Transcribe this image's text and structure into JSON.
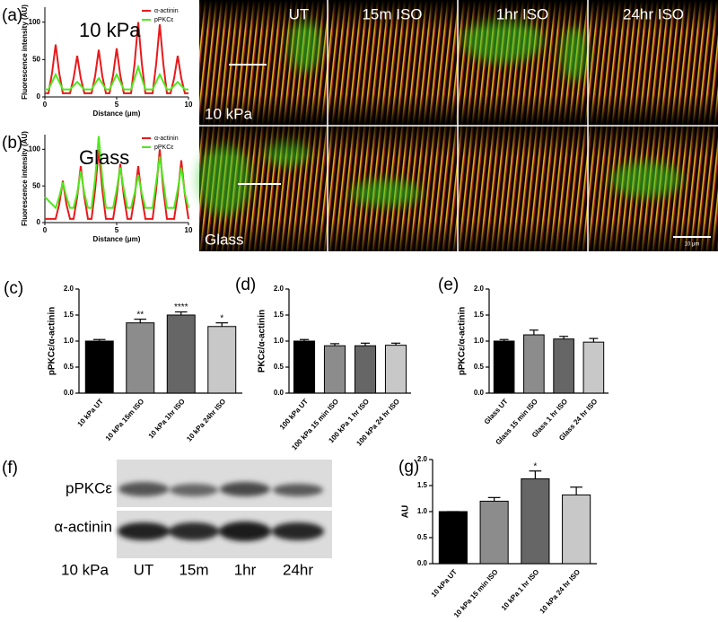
{
  "chart_data": [
    {
      "type": "line",
      "label": "(a)",
      "annotation": "10 kPa",
      "xlabel": "Distance (μm)",
      "ylabel": "Fluorescence intensity (AU)",
      "x": [
        0,
        0.25,
        0.5,
        0.75,
        1,
        1.25,
        1.5,
        1.75,
        2,
        2.25,
        2.5,
        2.75,
        3,
        3.25,
        3.5,
        3.75,
        4,
        4.25,
        4.5,
        4.75,
        5,
        5.25,
        5.5,
        5.75,
        6,
        6.25,
        6.5,
        6.75,
        7,
        7.25,
        7.5,
        7.75,
        8,
        8.25,
        8.5,
        8.75,
        9,
        9.25,
        9.5,
        9.75,
        10
      ],
      "series": [
        {
          "name": "α-actinin",
          "color": "#e8191c",
          "values": [
            5,
            5,
            32,
            70,
            32,
            5,
            5,
            5,
            25,
            55,
            25,
            5,
            5,
            5,
            28,
            63,
            28,
            5,
            5,
            29,
            65,
            29,
            5,
            5,
            5,
            45,
            100,
            45,
            5,
            5,
            5,
            44,
            97,
            44,
            5,
            5,
            25,
            55,
            25,
            5,
            5
          ]
        },
        {
          "name": "pPKCε",
          "color": "#4fe81c",
          "values": [
            10,
            10,
            20,
            30,
            20,
            10,
            10,
            10,
            15,
            20,
            15,
            10,
            10,
            10,
            18,
            25,
            18,
            10,
            10,
            20,
            30,
            20,
            10,
            10,
            10,
            25,
            40,
            25,
            10,
            10,
            10,
            20,
            30,
            20,
            10,
            10,
            15,
            20,
            15,
            10,
            10
          ]
        }
      ],
      "xlim": [
        0,
        10
      ],
      "xticks": [
        0,
        5,
        10
      ],
      "ylim": [
        0,
        120
      ],
      "yticks": [
        0,
        50,
        100
      ]
    },
    {
      "type": "line",
      "label": "(b)",
      "annotation": "Glass",
      "xlabel": "Distance (μm)",
      "ylabel": "Fluorescence intensity (AU)",
      "x": [
        0,
        0.25,
        0.5,
        0.75,
        1,
        1.25,
        1.5,
        1.75,
        2,
        2.25,
        2.5,
        2.75,
        3,
        3.25,
        3.5,
        3.75,
        4,
        4.25,
        4.5,
        4.75,
        5,
        5.25,
        5.5,
        5.75,
        6,
        6.25,
        6.5,
        6.75,
        7,
        7.25,
        7.5,
        7.75,
        8,
        8.25,
        8.5,
        8.75,
        9,
        9.25,
        9.5,
        9.75,
        10
      ],
      "series": [
        {
          "name": "α-actinin",
          "color": "#e8191c",
          "values": [
            5,
            5,
            5,
            5,
            25,
            57,
            25,
            5,
            5,
            35,
            77,
            35,
            5,
            5,
            45,
            100,
            45,
            5,
            5,
            5,
            36,
            80,
            36,
            5,
            5,
            35,
            77,
            35,
            5,
            5,
            5,
            45,
            100,
            45,
            5,
            5,
            5,
            38,
            85,
            38,
            5
          ]
        },
        {
          "name": "pPKCε",
          "color": "#4fe81c",
          "values": [
            35,
            30,
            25,
            20,
            35,
            55,
            35,
            20,
            20,
            40,
            70,
            40,
            20,
            20,
            60,
            118,
            60,
            20,
            20,
            20,
            45,
            75,
            45,
            20,
            20,
            40,
            65,
            40,
            20,
            20,
            20,
            55,
            90,
            55,
            20,
            20,
            20,
            45,
            75,
            40,
            20
          ]
        }
      ],
      "xlim": [
        0,
        10
      ],
      "xticks": [
        0,
        5,
        10
      ],
      "ylim": [
        0,
        120
      ],
      "yticks": [
        0,
        50,
        100
      ]
    },
    {
      "type": "bar",
      "label": "(c)",
      "ylabel": "pPKCε/α-actinin",
      "categories": [
        "10 kPa UT",
        "10 kPa 15m ISO",
        "10 kPa 1hr ISO",
        "10 kPa 24hr ISO"
      ],
      "values": [
        1.0,
        1.35,
        1.5,
        1.28
      ],
      "errors": [
        0.03,
        0.07,
        0.06,
        0.07
      ],
      "annotations": [
        null,
        "**",
        "****",
        "*"
      ],
      "colors": [
        "#000000",
        "#8c8c8c",
        "#666666",
        "#c8c8c8"
      ],
      "ylim": [
        0,
        2
      ],
      "yticks": [
        {
          "value": 0,
          "label": "0.0"
        },
        {
          "value": 0.5,
          "label": "0.5"
        },
        {
          "value": 1,
          "label": "1.0"
        },
        {
          "value": 1.5,
          "label": "1.5"
        },
        {
          "value": 2,
          "label": "2.0"
        }
      ]
    },
    {
      "type": "bar",
      "label": "(d)",
      "ylabel": "PKCε/α-actinin",
      "categories": [
        "100 kPa UT",
        "100 kPa 15 min ISO",
        "100 kPa 1 hr ISO",
        "100 kPa 24 hr ISO"
      ],
      "values": [
        1.0,
        0.91,
        0.91,
        0.92
      ],
      "errors": [
        0.03,
        0.04,
        0.05,
        0.04
      ],
      "colors": [
        "#000000",
        "#8c8c8c",
        "#666666",
        "#c8c8c8"
      ],
      "ylim": [
        0,
        2
      ],
      "yticks": [
        {
          "value": 0,
          "label": "0.0"
        },
        {
          "value": 0.5,
          "label": "0.5"
        },
        {
          "value": 1,
          "label": "1.0"
        },
        {
          "value": 1.5,
          "label": "1.5"
        },
        {
          "value": 2,
          "label": "2.0"
        }
      ]
    },
    {
      "type": "bar",
      "label": "(e)",
      "ylabel": "pPKCε/α-actinin",
      "categories": [
        "Glass UT",
        "Glass 15 min ISO",
        "Glass 1 hr ISO",
        "Glass 24 hr ISO"
      ],
      "values": [
        1.0,
        1.12,
        1.04,
        0.98
      ],
      "errors": [
        0.03,
        0.09,
        0.05,
        0.07
      ],
      "colors": [
        "#000000",
        "#8c8c8c",
        "#666666",
        "#c8c8c8"
      ],
      "ylim": [
        0,
        2
      ],
      "yticks": [
        {
          "value": 0,
          "label": "0.0"
        },
        {
          "value": 0.5,
          "label": "0.5"
        },
        {
          "value": 1,
          "label": "1.0"
        },
        {
          "value": 1.5,
          "label": "1.5"
        },
        {
          "value": 2,
          "label": "2.0"
        }
      ]
    },
    {
      "type": "bar",
      "label": "(g)",
      "ylabel": "AU",
      "categories": [
        "10 kPa UT",
        "10 kPa 15 min ISO",
        "10 kPa 1 hr ISO",
        "10 kPa 24 hr ISO"
      ],
      "values": [
        1.0,
        1.2,
        1.63,
        1.32
      ],
      "errors": [
        0,
        0.07,
        0.15,
        0.15
      ],
      "annotations": [
        null,
        null,
        "*",
        null
      ],
      "colors": [
        "#000000",
        "#8c8c8c",
        "#666666",
        "#c8c8c8"
      ],
      "ylim": [
        0,
        2
      ],
      "yticks": [
        {
          "value": 0,
          "label": "0.0"
        },
        {
          "value": 0.5,
          "label": "0.5"
        },
        {
          "value": 1,
          "label": "1.0"
        },
        {
          "value": 1.5,
          "label": "1.5"
        },
        {
          "value": 2,
          "label": "2.0"
        }
      ]
    }
  ],
  "images": {
    "columns": [
      "UT",
      "15m ISO",
      "1hr ISO",
      "24hr ISO"
    ],
    "rows": [
      "10 kPa",
      "Glass"
    ],
    "scale_bar": "10 μm"
  },
  "blot": {
    "label": "(f)",
    "rows": [
      "pPKCε",
      "α-actinin"
    ],
    "condition": "10 kPa",
    "lanes": [
      "UT",
      "15m",
      "1hr",
      "24hr"
    ]
  }
}
